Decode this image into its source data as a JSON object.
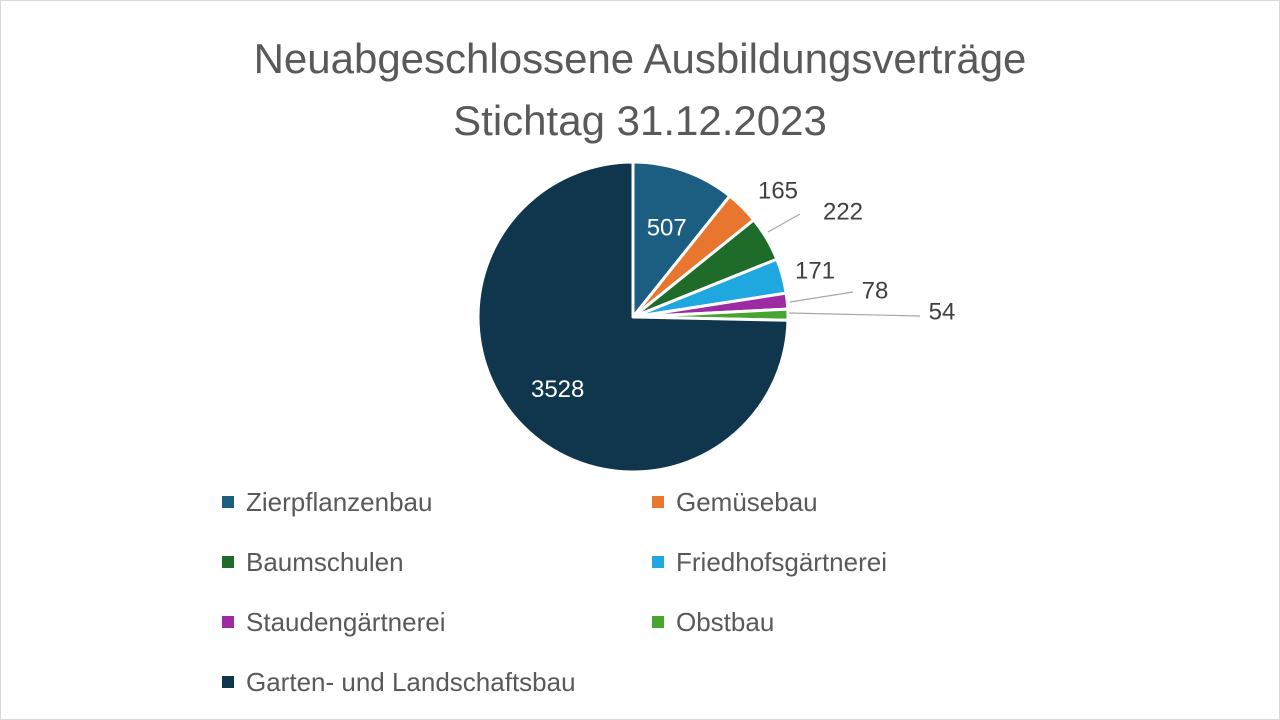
{
  "chart_data": {
    "type": "pie",
    "title": "Neuabgeschlossene Ausbildungsverträge",
    "subtitle": "Stichtag 31.12.2023",
    "series": [
      {
        "name": "Zierpflanzenbau",
        "value": 507,
        "label": "507",
        "color": "#1b5e82"
      },
      {
        "name": "Gemüsebau",
        "value": 165,
        "label": "165",
        "color": "#e8762e"
      },
      {
        "name": "Baumschulen",
        "value": 222,
        "label": "222",
        "color": "#1f6b2a"
      },
      {
        "name": "Friedhofsgärtnerei",
        "value": 171,
        "label": "171",
        "color": "#1fa7e0"
      },
      {
        "name": "Staudengärtnerei",
        "value": 78,
        "label": "78",
        "color": "#9c2aa0"
      },
      {
        "name": "Obstbau",
        "value": 54,
        "label": "54",
        "color": "#48a630"
      },
      {
        "name": "Garten- und Landschaftsbau",
        "value": 3528,
        "label": "3528",
        "color": "#10364d"
      }
    ],
    "legend_position": "bottom",
    "label_color_inside": "#ffffff",
    "label_color_outside": "#404040"
  }
}
